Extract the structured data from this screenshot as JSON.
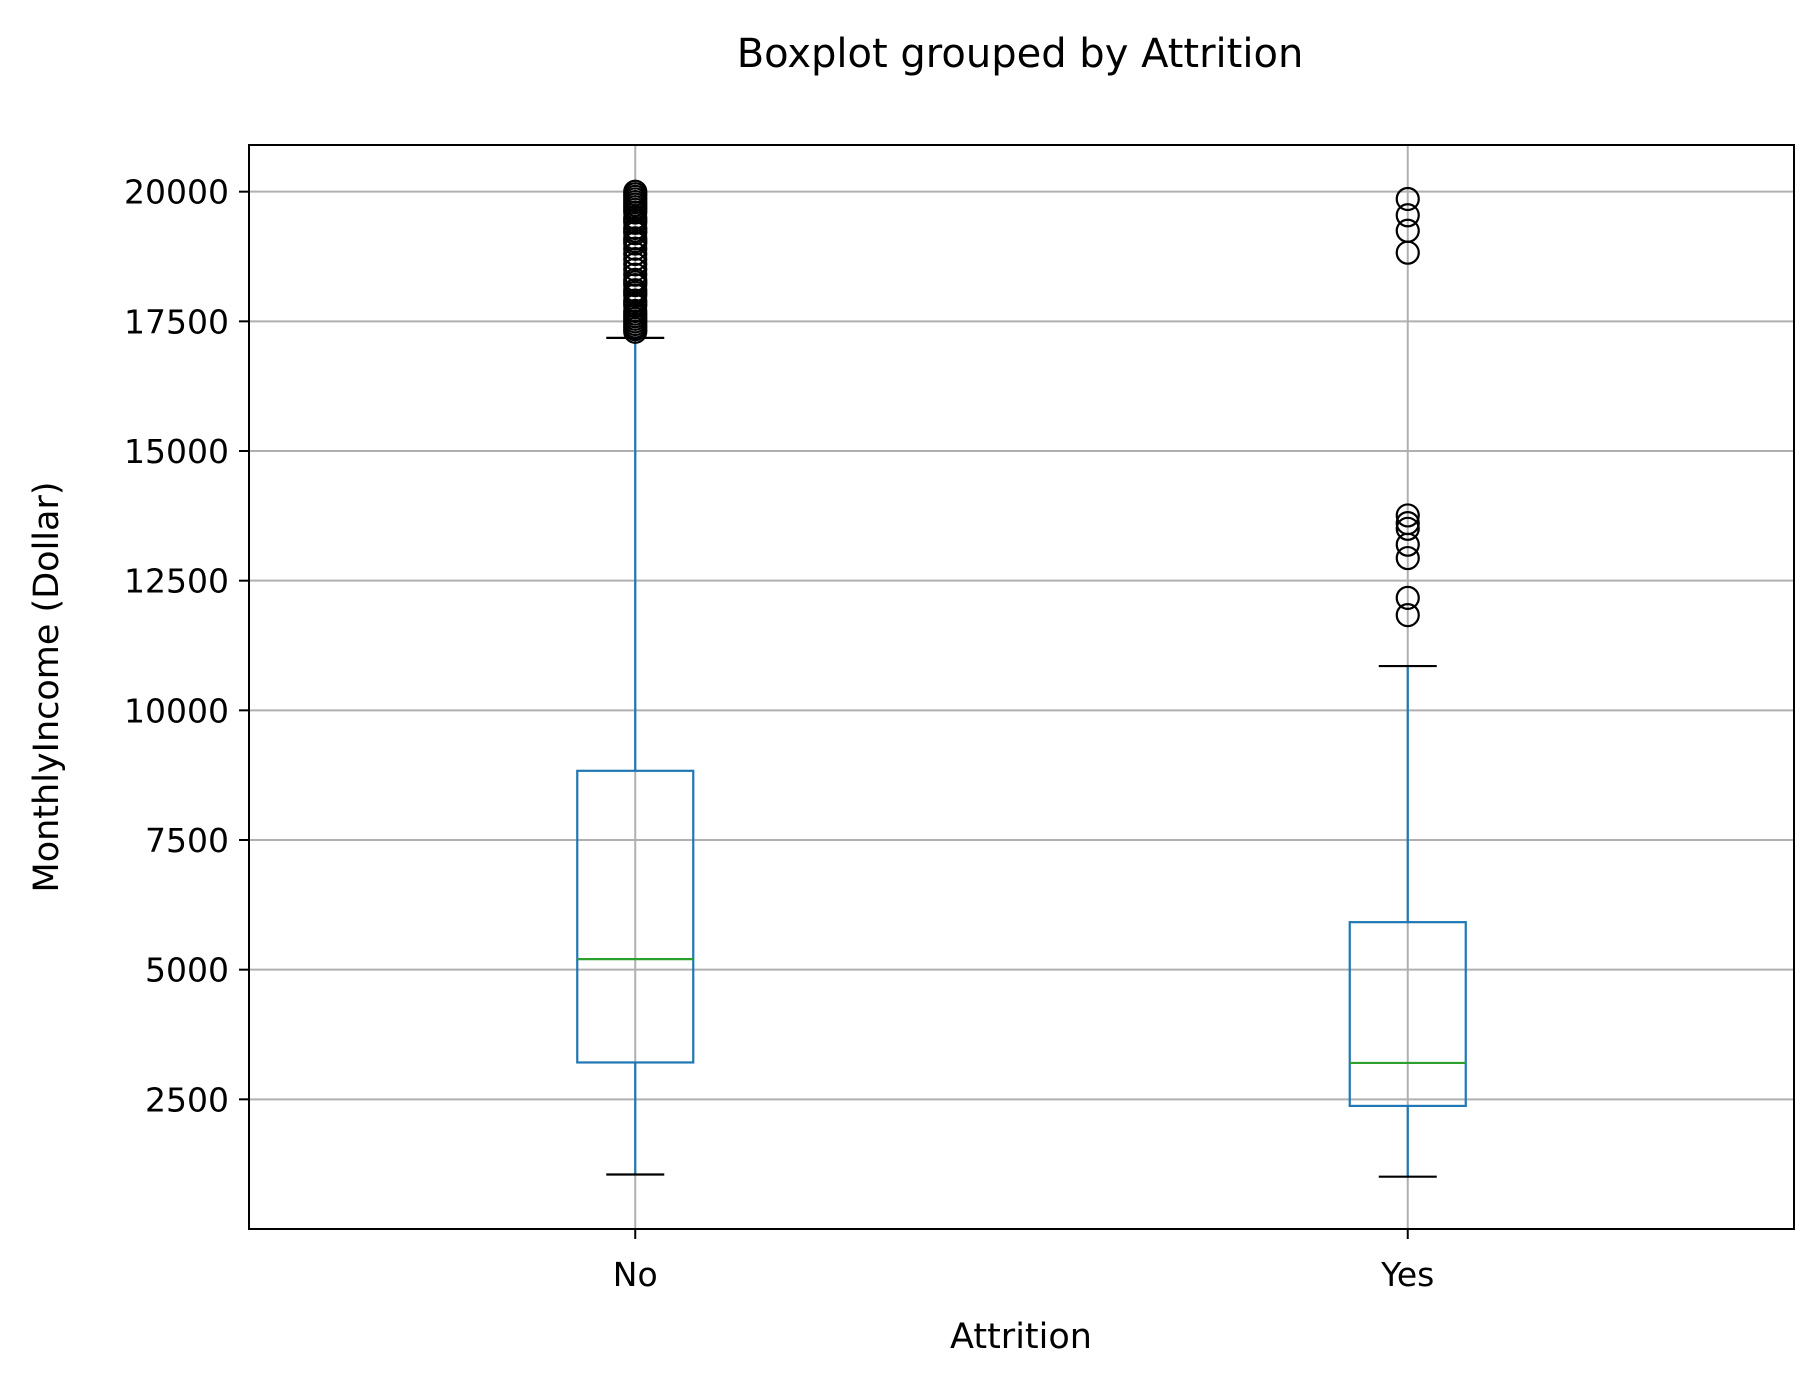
{
  "chart_data": {
    "type": "box",
    "title": "Boxplot grouped by Attrition",
    "xlabel": "Attrition",
    "ylabel": "MonthlyIncome (Dollar)",
    "categories": [
      "No",
      "Yes"
    ],
    "ylim": [
      0,
      20900
    ],
    "yticks": [
      2500,
      5000,
      7500,
      10000,
      12500,
      15000,
      17500,
      20000
    ],
    "grid": true,
    "colors": {
      "box": "#1f77b4",
      "median": "#2ca02c",
      "cap": "#000000",
      "flier": "#000000",
      "grid": "#b0b0b0"
    },
    "series": [
      {
        "category": "No",
        "whisker_low": 1051,
        "q1": 3211,
        "median": 5204,
        "q3": 8834,
        "whisker_high": 17181,
        "fliers": [
          17300,
          17350,
          17400,
          17450,
          17500,
          17550,
          17600,
          17650,
          17700,
          17800,
          17850,
          17900,
          18000,
          18050,
          18100,
          18200,
          18250,
          18300,
          18400,
          18500,
          18600,
          18700,
          18800,
          18900,
          19000,
          19050,
          19100,
          19200,
          19250,
          19300,
          19400,
          19450,
          19500,
          19600,
          19650,
          19700,
          19750,
          19800,
          19850,
          19900,
          19950,
          19999
        ]
      },
      {
        "category": "Yes",
        "whisker_low": 1009,
        "q1": 2373,
        "median": 3202,
        "q3": 5916,
        "whisker_high": 10854,
        "fliers": [
          11836,
          12169,
          12936,
          13194,
          13500,
          13610,
          13758,
          18824,
          19246,
          19545,
          19859
        ]
      }
    ]
  }
}
